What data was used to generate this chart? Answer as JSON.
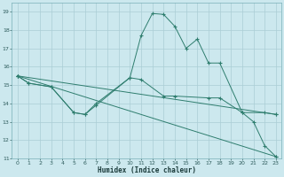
{
  "color": "#2e7d6e",
  "bg_color": "#cce8ee",
  "grid_color": "#aacdd5",
  "xlim": [
    -0.5,
    23.5
  ],
  "ylim": [
    11,
    19.5
  ],
  "yticks": [
    11,
    12,
    13,
    14,
    15,
    16,
    17,
    18,
    19
  ],
  "xticks": [
    0,
    1,
    2,
    3,
    4,
    5,
    6,
    7,
    8,
    9,
    10,
    11,
    12,
    13,
    14,
    15,
    16,
    17,
    18,
    19,
    20,
    21,
    22,
    23
  ],
  "xlabel": "Humidex (Indice chaleur)",
  "series": [
    {
      "x": [
        0,
        1,
        3,
        5,
        6,
        7,
        10,
        11,
        12,
        13,
        14,
        15,
        16,
        17,
        18,
        20,
        21,
        22,
        23
      ],
      "y": [
        15.5,
        15.1,
        14.9,
        13.5,
        13.4,
        13.9,
        15.4,
        17.7,
        18.9,
        18.85,
        18.2,
        17.0,
        17.5,
        16.2,
        16.2,
        13.5,
        13.0,
        11.7,
        11.1
      ]
    },
    {
      "x": [
        0,
        1,
        3,
        5,
        6,
        7,
        10,
        11,
        13,
        14,
        17,
        18,
        20,
        22,
        23
      ],
      "y": [
        15.5,
        15.1,
        14.9,
        13.5,
        13.4,
        14.0,
        15.4,
        15.3,
        14.4,
        14.4,
        14.3,
        14.3,
        13.5,
        13.5,
        13.4
      ]
    },
    {
      "x": [
        0,
        23
      ],
      "y": [
        15.5,
        13.4
      ]
    },
    {
      "x": [
        0,
        23
      ],
      "y": [
        15.5,
        11.1
      ]
    }
  ]
}
